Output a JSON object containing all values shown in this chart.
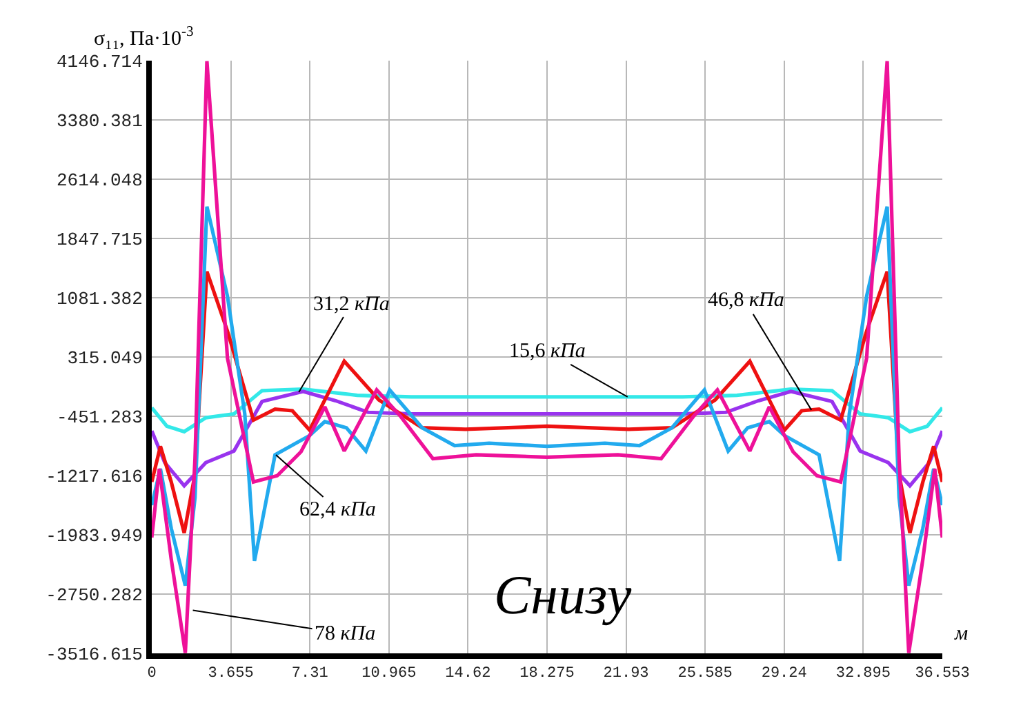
{
  "chart_data": {
    "type": "line",
    "ylabel": "σ₁₁, Па·10$^{-3}$",
    "xlabel": "м",
    "xlim": [
      0,
      36.553
    ],
    "xticks": [
      0,
      3.655,
      7.31,
      10.965,
      14.62,
      18.275,
      21.93,
      25.585,
      29.24,
      32.895,
      36.553
    ],
    "ylim": [
      -3516.615,
      4146.714
    ],
    "yticks": [
      -3516.615,
      -2750.282,
      -1983.949,
      -1217.616,
      -451.283,
      315.049,
      1081.382,
      1847.715,
      2614.048,
      3380.381,
      4146.714
    ],
    "grid": true,
    "marker": "none",
    "line_style": "solid",
    "series": [
      {
        "color": "#33e8e8",
        "x": [
          0,
          0.7,
          1.5,
          2.5,
          3.8,
          5.1,
          7.0,
          9.5,
          12,
          18.275,
          24.553,
          27.053,
          29.553,
          31.453,
          32.753,
          34.053,
          35.053,
          35.853,
          36.553
        ],
        "values": [
          -340,
          -580,
          -650,
          -470,
          -420,
          -120,
          -100,
          -180,
          -200,
          -200,
          -200,
          -180,
          -100,
          -120,
          -420,
          -470,
          -650,
          -580,
          -340
        ]
      },
      {
        "color": "#9933ee",
        "x": [
          0,
          0.6,
          1.5,
          2.5,
          3.8,
          5.1,
          7.0,
          8.5,
          10,
          12,
          18.275,
          24.553,
          26.553,
          28.053,
          29.553,
          31.453,
          32.753,
          34.053,
          35.053,
          35.953,
          36.553
        ],
        "values": [
          -640,
          -1050,
          -1350,
          -1050,
          -900,
          -260,
          -130,
          -250,
          -400,
          -420,
          -420,
          -420,
          -400,
          -250,
          -130,
          -260,
          -900,
          -1050,
          -1350,
          -1050,
          -640
        ]
      },
      {
        "color": "#ee1111",
        "x": [
          0,
          0.4,
          0.9,
          1.5,
          2.0,
          2.55,
          3.5,
          4.7,
          5.7,
          6.5,
          7.3,
          8.9,
          10.5,
          12.5,
          14.5,
          18.275,
          22.053,
          24.053,
          26.053,
          27.653,
          29.253,
          30.053,
          30.853,
          31.853,
          33.053,
          34.003,
          34.553,
          35.053,
          35.653,
          36.153,
          36.553
        ],
        "values": [
          -1300,
          -840,
          -1300,
          -1960,
          -1200,
          1420,
          650,
          -500,
          -360,
          -380,
          -630,
          260,
          -240,
          -600,
          -620,
          -580,
          -620,
          -600,
          -240,
          260,
          -630,
          -380,
          -360,
          -500,
          650,
          1420,
          -1200,
          -1960,
          -1300,
          -840,
          -1300
        ]
      },
      {
        "color": "#22aaee",
        "x": [
          0,
          0.4,
          0.9,
          1.55,
          2.0,
          2.55,
          3.5,
          4.3,
          4.75,
          5.7,
          7.3,
          8.0,
          9.0,
          9.9,
          11.0,
          12.5,
          14.0,
          15.6,
          18.275,
          20.953,
          22.553,
          24.053,
          25.553,
          26.653,
          27.553,
          28.553,
          29.253,
          30.853,
          31.803,
          32.253,
          33.053,
          34.003,
          34.553,
          35.003,
          35.653,
          36.153,
          36.553
        ],
        "values": [
          -1600,
          -1130,
          -1900,
          -2640,
          -1500,
          2260,
          1100,
          -420,
          -2320,
          -950,
          -700,
          -520,
          -600,
          -900,
          -110,
          -600,
          -830,
          -800,
          -840,
          -800,
          -830,
          -600,
          -110,
          -900,
          -600,
          -520,
          -700,
          -950,
          -2320,
          -420,
          1100,
          2260,
          -1500,
          -2640,
          -1900,
          -1130,
          -1600
        ]
      },
      {
        "color": "#ee1199",
        "x": [
          0,
          0.35,
          0.9,
          1.55,
          2.0,
          2.55,
          3.5,
          4.7,
          5.8,
          6.9,
          8.0,
          8.9,
          10.4,
          11.5,
          13.0,
          15.0,
          18.275,
          21.553,
          23.553,
          25.053,
          26.153,
          27.653,
          28.553,
          29.653,
          30.753,
          31.853,
          33.053,
          34.003,
          34.553,
          35.003,
          35.653,
          36.203,
          36.553
        ],
        "values": [
          -2020,
          -1130,
          -2300,
          -3510,
          -1000,
          4140,
          300,
          -1300,
          -1220,
          -910,
          -330,
          -900,
          -110,
          -450,
          -1000,
          -950,
          -980,
          -950,
          -1000,
          -450,
          -110,
          -900,
          -330,
          -910,
          -1220,
          -1300,
          300,
          4140,
          -1000,
          -3510,
          -2300,
          -1130,
          -2020
        ]
      }
    ],
    "annotations": [
      {
        "text": "31,2 кПа",
        "x": 6.8,
        "y": -140
      },
      {
        "text": "15,6 кПа",
        "x": 22.0,
        "y": -200
      },
      {
        "text": "46,8 кПа",
        "x": 30.5,
        "y": -370
      },
      {
        "text": "62,4 кПа",
        "x": 5.74,
        "y": -950
      },
      {
        "text": "78 кПа",
        "x": 1.9,
        "y": -2960
      },
      "Снизу"
    ]
  }
}
